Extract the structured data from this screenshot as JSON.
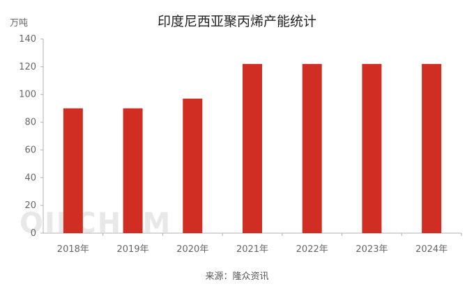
{
  "page": {
    "title": "印度尼西亚聚丙烯产能统计",
    "unit_label": "万吨",
    "source": "来源：隆众资讯",
    "watermark": "OILCHEM"
  },
  "chart_data": {
    "type": "bar",
    "title": "印度尼西亚聚丙烯产能统计",
    "ylabel": "万吨",
    "categories": [
      "2018年",
      "2019年",
      "2020年",
      "2021年",
      "2022年",
      "2023年",
      "2024年"
    ],
    "values": [
      90,
      90,
      97,
      122,
      122,
      122,
      122
    ],
    "ylim": [
      0,
      140
    ],
    "yticks": [
      0,
      20,
      40,
      60,
      80,
      100,
      120,
      140
    ],
    "grid": false,
    "bar_color": "#d02e22",
    "axis_color": "#b0b0b0"
  }
}
